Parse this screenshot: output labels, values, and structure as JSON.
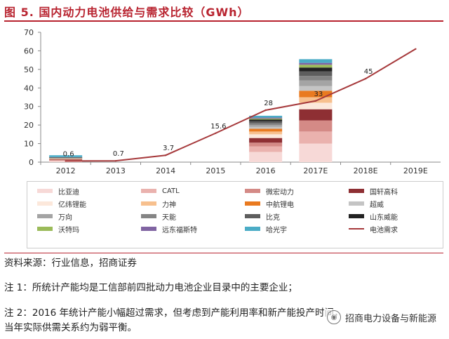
{
  "figure": {
    "title": "图 5.   国内动力电池供给与需求比较（GWh）"
  },
  "chart_data": {
    "type": "bar",
    "subtype": "stacked bar with line overlay",
    "categories": [
      "2012",
      "2013",
      "2014",
      "2015",
      "2016",
      "2017E",
      "2018E",
      "2019E"
    ],
    "ylim": [
      0,
      70
    ],
    "yticks": [
      0,
      10,
      20,
      30,
      40,
      50,
      60,
      70
    ],
    "grid": false,
    "legend_position": "bottom",
    "series": [
      {
        "name": "比亚迪",
        "color": "#f7d9d7",
        "values": [
          0.6,
          0,
          0,
          0,
          5.5,
          10,
          0,
          0
        ]
      },
      {
        "name": "CATL",
        "color": "#eab2ae",
        "values": [
          0.3,
          0,
          0,
          0,
          3,
          6.5,
          0,
          0
        ]
      },
      {
        "name": "微宏动力",
        "color": "#d48a86",
        "values": [
          0.3,
          0,
          0,
          0,
          2,
          6,
          0,
          0
        ]
      },
      {
        "name": "国轩高科",
        "color": "#8e2f33",
        "values": [
          0.3,
          0,
          0,
          0,
          2.5,
          6,
          0,
          0
        ]
      },
      {
        "name": "亿纬锂能",
        "color": "#fce8db",
        "values": [
          0.2,
          0,
          0,
          0,
          2,
          3.5,
          0,
          0
        ]
      },
      {
        "name": "力神",
        "color": "#f7c08e",
        "values": [
          0.2,
          0,
          0,
          0,
          1.5,
          3,
          0,
          0
        ]
      },
      {
        "name": "中航锂电",
        "color": "#e97a1f",
        "values": [
          0.1,
          0,
          0,
          0,
          1.5,
          3.5,
          0,
          0
        ]
      },
      {
        "name": "超威",
        "color": "#c4c4c4",
        "values": [
          0.1,
          0,
          0,
          0,
          1,
          2.5,
          0,
          0
        ]
      },
      {
        "name": "万向",
        "color": "#a4a4a4",
        "values": [
          0.1,
          0,
          0,
          0,
          1,
          3,
          0,
          0
        ]
      },
      {
        "name": "天能",
        "color": "#858585",
        "values": [
          0.1,
          0,
          0,
          0,
          1,
          2.5,
          0,
          0
        ]
      },
      {
        "name": "比克",
        "color": "#5e5e5e",
        "values": [
          0.1,
          0,
          0,
          0,
          1,
          2.5,
          0,
          0
        ]
      },
      {
        "name": "山东威能",
        "color": "#222222",
        "values": [
          0.1,
          0,
          0,
          0,
          1,
          2,
          0,
          0
        ]
      },
      {
        "name": "沃特玛",
        "color": "#9bbb59",
        "values": [
          0.1,
          0,
          0,
          0,
          0.5,
          1.5,
          0,
          0
        ]
      },
      {
        "name": "远东福斯特",
        "color": "#8064a2",
        "values": [
          0.1,
          0,
          0,
          0,
          0.5,
          1,
          0,
          0
        ]
      },
      {
        "name": "哈光宇",
        "color": "#4bacc6",
        "values": [
          1.0,
          0,
          0,
          0,
          1,
          2,
          0,
          0
        ]
      }
    ],
    "line": {
      "name": "电池需求",
      "color": "#a6393b",
      "values": [
        0.6,
        0.7,
        3.7,
        15.6,
        28,
        33,
        45,
        61
      ],
      "labels": [
        "0.6",
        "0.7",
        "3.7",
        "15.6",
        "28",
        "33",
        "45",
        ""
      ]
    }
  },
  "footer": {
    "source": "资料来源：行业信息，招商证券",
    "note1": "注 1：所统计产能均是工信部前四批动力电池企业目录中的主要企业；",
    "note2_line1": "注 2：2016 年统计产能小幅超过需求，但考虑到产能利用率和新产能投产时间，",
    "note2_line2": "当年实际供需关系约为弱平衡。"
  },
  "watermark": {
    "text": "招商电力设备与新能源"
  }
}
